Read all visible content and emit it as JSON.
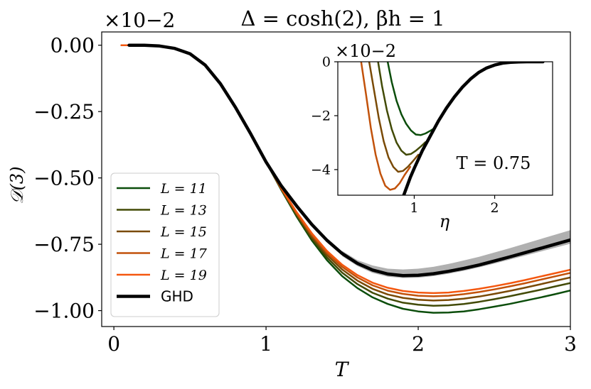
{
  "title": "Δ = cosh(2), βh = 1",
  "chart_data": [
    {
      "type": "line",
      "xlabel": "T",
      "ylabel": "𝒟(3)",
      "y_multiplier": "×10−2",
      "xlim": [
        -0.08,
        3.0
      ],
      "ylim": [
        -1.06,
        0.05
      ],
      "xticks": [
        0,
        1,
        2,
        3
      ],
      "xtick_labels": [
        "0",
        "1",
        "2",
        "3"
      ],
      "yticks": [
        0.0,
        -0.25,
        -0.5,
        -0.75,
        -1.0
      ],
      "ytick_labels": [
        "0.00",
        "−0.25",
        "−0.50",
        "−0.75",
        "−1.00"
      ],
      "legend_position": "lower-left",
      "x": [
        0.05,
        0.1,
        0.2,
        0.3,
        0.4,
        0.5,
        0.6,
        0.7,
        0.8,
        0.9,
        1.0,
        1.1,
        1.2,
        1.3,
        1.4,
        1.5,
        1.6,
        1.7,
        1.8,
        1.9,
        2.0,
        2.1,
        2.2,
        2.3,
        2.4,
        2.5,
        2.6,
        2.7,
        2.8,
        2.9,
        3.0
      ],
      "series": [
        {
          "name": "L = 11",
          "color": "#0b4d0b",
          "width": 2.5,
          "values": [
            0.0,
            0.0,
            0.0,
            -0.003,
            -0.012,
            -0.032,
            -0.075,
            -0.145,
            -0.235,
            -0.335,
            -0.44,
            -0.545,
            -0.645,
            -0.735,
            -0.81,
            -0.87,
            -0.915,
            -0.95,
            -0.975,
            -0.993,
            -1.003,
            -1.008,
            -1.007,
            -1.003,
            -0.995,
            -0.985,
            -0.975,
            -0.963,
            -0.951,
            -0.938,
            -0.924
          ]
        },
        {
          "name": "L = 13",
          "color": "#424a06",
          "width": 2.5,
          "values": [
            0.0,
            0.0,
            0.0,
            -0.003,
            -0.012,
            -0.032,
            -0.075,
            -0.145,
            -0.235,
            -0.335,
            -0.44,
            -0.543,
            -0.64,
            -0.728,
            -0.8,
            -0.857,
            -0.9,
            -0.933,
            -0.955,
            -0.97,
            -0.978,
            -0.982,
            -0.98,
            -0.975,
            -0.967,
            -0.957,
            -0.946,
            -0.934,
            -0.922,
            -0.909,
            -0.896
          ]
        },
        {
          "name": "L = 15",
          "color": "#7a4a06",
          "width": 2.5,
          "values": [
            0.0,
            0.0,
            0.0,
            -0.003,
            -0.012,
            -0.032,
            -0.075,
            -0.145,
            -0.235,
            -0.335,
            -0.44,
            -0.541,
            -0.636,
            -0.721,
            -0.79,
            -0.845,
            -0.887,
            -0.918,
            -0.939,
            -0.952,
            -0.959,
            -0.962,
            -0.96,
            -0.955,
            -0.947,
            -0.937,
            -0.926,
            -0.914,
            -0.901,
            -0.888,
            -0.875
          ]
        },
        {
          "name": "L = 17",
          "color": "#c2520b",
          "width": 2.5,
          "values": [
            0.0,
            0.0,
            0.0,
            -0.003,
            -0.012,
            -0.032,
            -0.075,
            -0.145,
            -0.235,
            -0.335,
            -0.44,
            -0.54,
            -0.632,
            -0.714,
            -0.782,
            -0.835,
            -0.875,
            -0.905,
            -0.925,
            -0.937,
            -0.944,
            -0.946,
            -0.944,
            -0.938,
            -0.93,
            -0.92,
            -0.909,
            -0.897,
            -0.884,
            -0.871,
            -0.858
          ]
        },
        {
          "name": "L = 19",
          "color": "#f4570f",
          "width": 2.5,
          "values": [
            0.0,
            0.0,
            0.0,
            -0.003,
            -0.012,
            -0.032,
            -0.075,
            -0.145,
            -0.235,
            -0.335,
            -0.44,
            -0.538,
            -0.628,
            -0.708,
            -0.775,
            -0.827,
            -0.866,
            -0.895,
            -0.914,
            -0.926,
            -0.932,
            -0.934,
            -0.932,
            -0.926,
            -0.918,
            -0.908,
            -0.897,
            -0.885,
            -0.872,
            -0.859,
            -0.846
          ]
        },
        {
          "name": "GHD",
          "color": "#000000",
          "width": 4.5,
          "values": [
            null,
            0.0,
            0.0,
            -0.003,
            -0.012,
            -0.032,
            -0.075,
            -0.145,
            -0.235,
            -0.335,
            -0.44,
            -0.53,
            -0.605,
            -0.675,
            -0.735,
            -0.785,
            -0.822,
            -0.847,
            -0.862,
            -0.868,
            -0.867,
            -0.861,
            -0.852,
            -0.841,
            -0.828,
            -0.813,
            -0.798,
            -0.782,
            -0.766,
            -0.75,
            -0.734
          ]
        }
      ],
      "band": {
        "color": "#b0b0b0",
        "x": [
          1.5,
          1.6,
          1.7,
          1.8,
          1.9,
          2.0,
          2.1,
          2.2,
          2.3,
          2.4,
          2.5,
          2.6,
          2.7,
          2.8,
          2.9,
          3.0
        ],
        "upper": [
          -0.775,
          -0.81,
          -0.83,
          -0.842,
          -0.845,
          -0.842,
          -0.835,
          -0.824,
          -0.811,
          -0.797,
          -0.781,
          -0.765,
          -0.748,
          -0.731,
          -0.714,
          -0.697
        ],
        "lower": [
          -0.795,
          -0.832,
          -0.858,
          -0.872,
          -0.877,
          -0.876,
          -0.87,
          -0.861,
          -0.85,
          -0.837,
          -0.823,
          -0.808,
          -0.793,
          -0.778,
          -0.763,
          -0.748
        ]
      }
    },
    {
      "type": "line",
      "xlabel": "η",
      "y_multiplier": "×10−2",
      "annotation": "T = 0.75",
      "xlim": [
        0.05,
        2.72
      ],
      "ylim": [
        -4.95,
        0.0
      ],
      "xticks": [
        1,
        2
      ],
      "xtick_labels": [
        "1",
        "2"
      ],
      "yticks": [
        0,
        -2,
        -4
      ],
      "ytick_labels": [
        "0",
        "−2",
        "−4"
      ],
      "series": [
        {
          "name": "L = 11",
          "color": "#0b4d0b",
          "width": 2.5,
          "x": [
            0.67,
            0.72,
            0.78,
            0.84,
            0.9,
            0.96,
            1.02,
            1.08,
            1.14,
            1.2,
            1.26
          ],
          "values": [
            0.0,
            -0.75,
            -1.45,
            -1.95,
            -2.3,
            -2.55,
            -2.7,
            -2.72,
            -2.66,
            -2.56,
            -2.45
          ]
        },
        {
          "name": "L = 13",
          "color": "#424a06",
          "width": 2.5,
          "x": [
            0.55,
            0.6,
            0.66,
            0.72,
            0.78,
            0.84,
            0.9,
            0.96,
            1.02,
            1.08,
            1.14
          ],
          "values": [
            0.0,
            -0.9,
            -1.8,
            -2.5,
            -3.0,
            -3.3,
            -3.45,
            -3.42,
            -3.3,
            -3.15,
            -2.98
          ]
        },
        {
          "name": "L = 15",
          "color": "#7a4a06",
          "width": 2.5,
          "x": [
            0.44,
            0.5,
            0.56,
            0.62,
            0.68,
            0.74,
            0.8,
            0.86,
            0.92,
            0.98,
            1.05
          ],
          "values": [
            0.0,
            -1.05,
            -2.1,
            -2.95,
            -3.55,
            -3.9,
            -4.08,
            -4.05,
            -3.9,
            -3.7,
            -3.45
          ]
        },
        {
          "name": "L = 17",
          "color": "#c2520b",
          "width": 2.5,
          "x": [
            0.34,
            0.4,
            0.46,
            0.52,
            0.58,
            0.64,
            0.7,
            0.76,
            0.82,
            0.88,
            0.95
          ],
          "values": [
            0.0,
            -1.2,
            -2.45,
            -3.45,
            -4.15,
            -4.6,
            -4.75,
            -4.7,
            -4.5,
            -4.2,
            -3.9
          ]
        },
        {
          "name": "GHD",
          "color": "#000000",
          "width": 4.5,
          "x": [
            0.87,
            0.95,
            1.0,
            1.1,
            1.2,
            1.3,
            1.4,
            1.5,
            1.6,
            1.7,
            1.8,
            1.9,
            2.0,
            2.1,
            2.2,
            2.3,
            2.4,
            2.5,
            2.6
          ],
          "values": [
            -4.95,
            -4.3,
            -3.95,
            -3.3,
            -2.75,
            -2.2,
            -1.72,
            -1.3,
            -0.94,
            -0.64,
            -0.4,
            -0.23,
            -0.12,
            -0.05,
            -0.02,
            -0.005,
            0.0,
            0.0,
            0.0
          ]
        }
      ]
    }
  ]
}
